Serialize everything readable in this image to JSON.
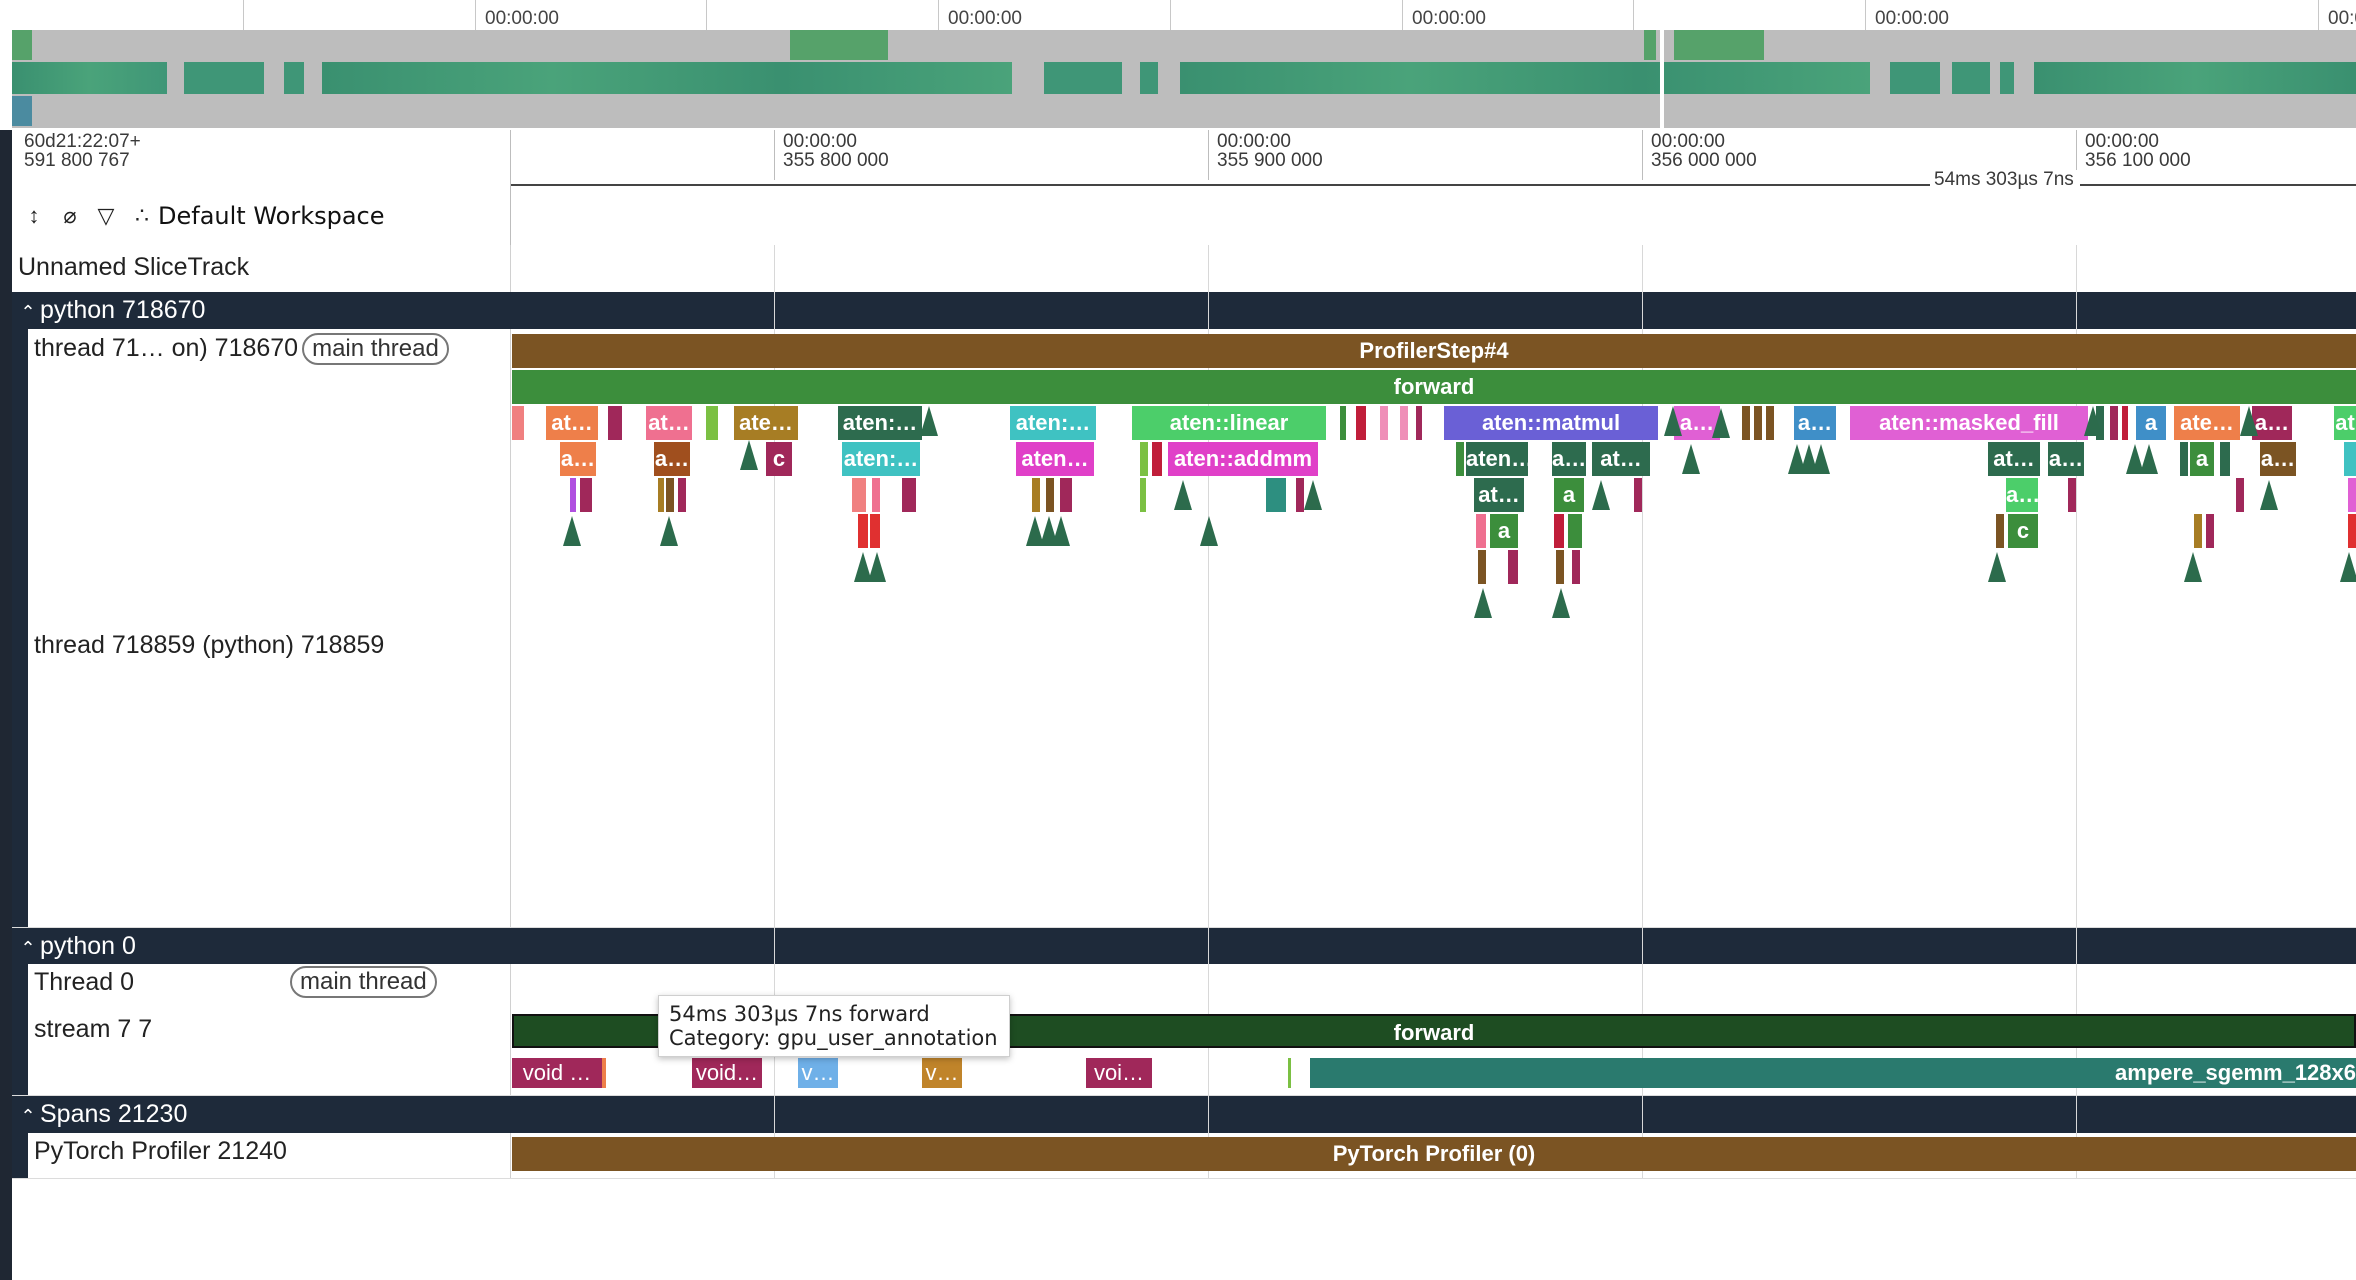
{
  "overview": {
    "tick_labels": [
      "00:00:00",
      "00:00:00",
      "00:00:00",
      "00:00:00",
      "00:0"
    ]
  },
  "ruler": {
    "origin_line1": "60d21:22:07+",
    "origin_line2": "591 800 767",
    "ticks": [
      {
        "l1": "00:00:00",
        "l2": "355 800 000"
      },
      {
        "l1": "00:00:00",
        "l2": "355 900 000"
      },
      {
        "l1": "00:00:00",
        "l2": "356 000 000"
      },
      {
        "l1": "00:00:00",
        "l2": "356 100 000"
      }
    ],
    "span_label": "54ms 303µs 7ns"
  },
  "toolbar": {
    "workspace_label": "Default Workspace",
    "icons": [
      "collapse-all-icon",
      "unpin-icon",
      "filter-icon",
      "workspace-icon"
    ]
  },
  "tracks": {
    "unnamed": "Unnamed SliceTrack",
    "group_python_718670": "python 718670",
    "thread_718670": "thread 71… on) 718670",
    "main_thread_pill": "main thread",
    "thread_718859": "thread 718859 (python) 718859",
    "group_python_0": "python 0",
    "thread_0": "Thread 0",
    "main_thread_pill_2": "main thread",
    "stream_7": "stream 7 7",
    "group_spans": "Spans 21230",
    "pytorch_profiler": "PyTorch Profiler 21240"
  },
  "slices": {
    "profiler_step": "ProfilerStep#4",
    "forward": "forward",
    "linear": "aten::linear",
    "addmm": "aten::addmm",
    "matmul": "aten::matmul",
    "masked_fill": "aten::masked_fill",
    "at1": "at…",
    "a1": "a…",
    "at2": "at…",
    "a2": "a…",
    "ate1": "ate…",
    "c1": "c",
    "aten1": "aten:…",
    "aten2": "aten:…",
    "aten3": "aten:…",
    "aten4": "aten…",
    "aten5": "aten…",
    "a3": "a…",
    "ate2": "ate…",
    "at3": "at…",
    "a4": "a",
    "a5": "a",
    "a6": "a…",
    "a7": "a…",
    "at4": "at…",
    "a8": "a…",
    "a9": "a…",
    "c2": "c",
    "a10": "a",
    "aten6": "aten…",
    "a11": "a…",
    "a12": "a",
    "a13": "a…",
    "a14": "at",
    "stream_forward": "forward",
    "void1": "void …",
    "void2": "void…",
    "v1": "v…",
    "v2": "v…",
    "voi": "voi…",
    "ampere": "ampere_sgemm_128x6",
    "pytorch_profiler_slice": "PyTorch Profiler (0)"
  },
  "tooltip": {
    "duration": "54ms 303µs 7ns",
    "name": "forward",
    "category": "Category: gpu_user_annotation"
  }
}
